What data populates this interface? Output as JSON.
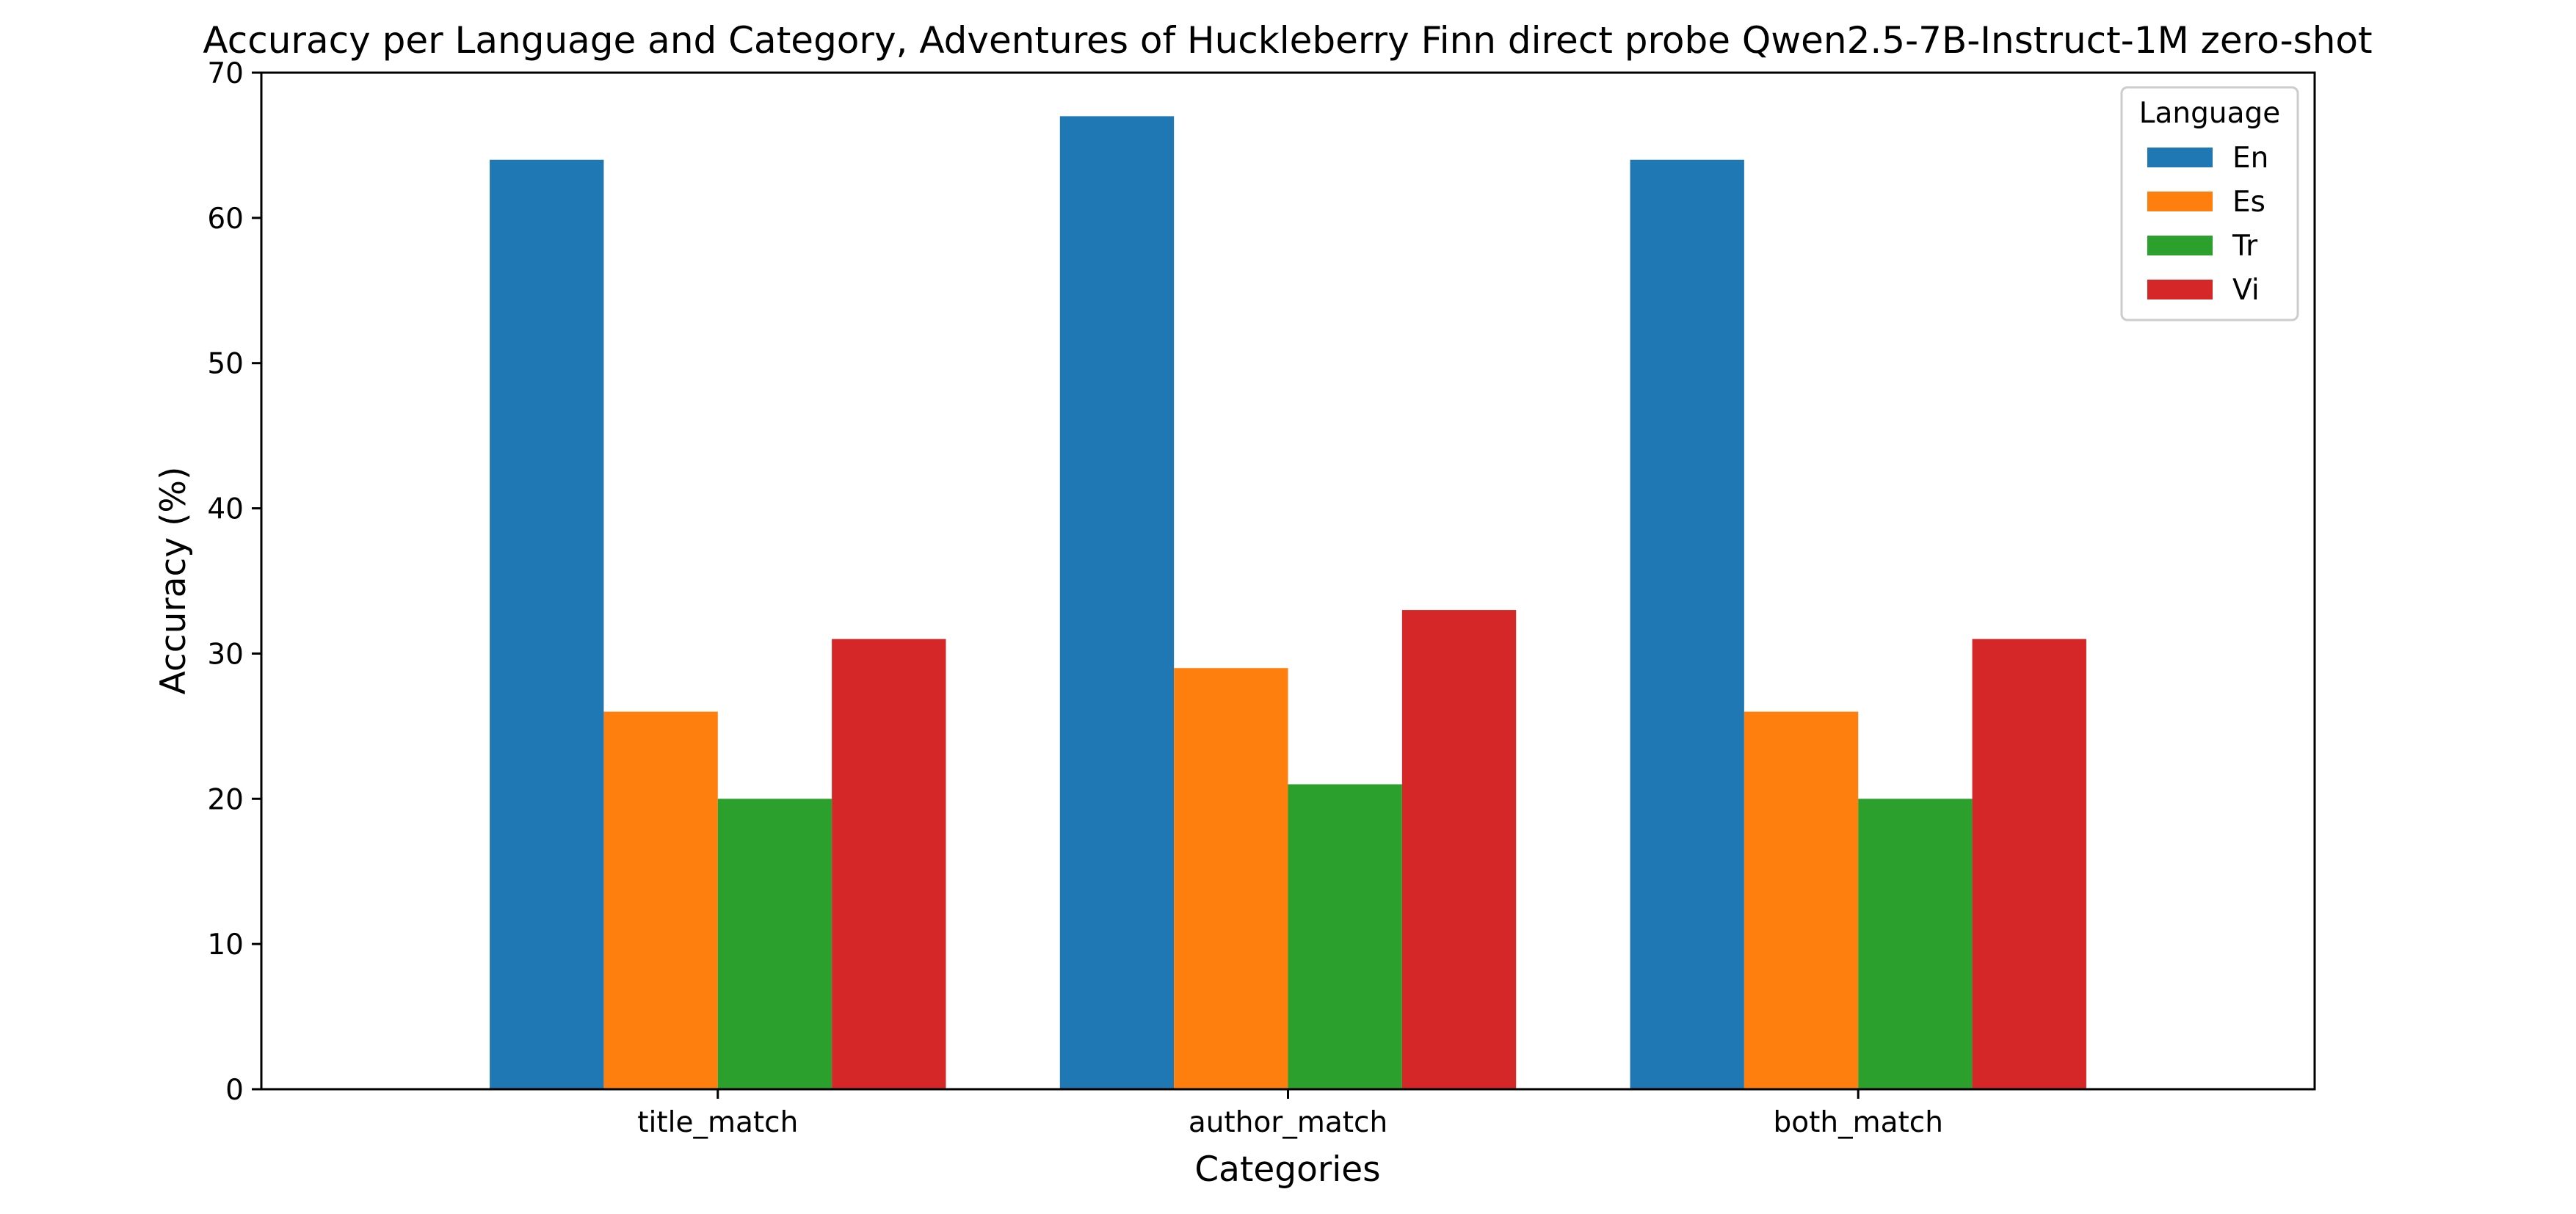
{
  "chart_data": {
    "type": "bar",
    "title": "Accuracy per Language and Category, Adventures of Huckleberry Finn direct probe Qwen2.5-7B-Instruct-1M zero-shot",
    "xlabel": "Categories",
    "ylabel": "Accuracy (%)",
    "categories": [
      "title_match",
      "author_match",
      "both_match"
    ],
    "ylim": [
      0,
      70
    ],
    "yticks": [
      0,
      10,
      20,
      30,
      40,
      50,
      60,
      70
    ],
    "grid": false,
    "legend": {
      "title": "Language",
      "placement": "top-right"
    },
    "series": [
      {
        "name": "En",
        "color": "#1f77b4",
        "values": [
          64,
          67,
          64
        ]
      },
      {
        "name": "Es",
        "color": "#ff7f0e",
        "values": [
          26,
          29,
          26
        ]
      },
      {
        "name": "Tr",
        "color": "#2ca02c",
        "values": [
          20,
          21,
          20
        ]
      },
      {
        "name": "Vi",
        "color": "#d62728",
        "values": [
          31,
          33,
          31
        ]
      }
    ]
  }
}
